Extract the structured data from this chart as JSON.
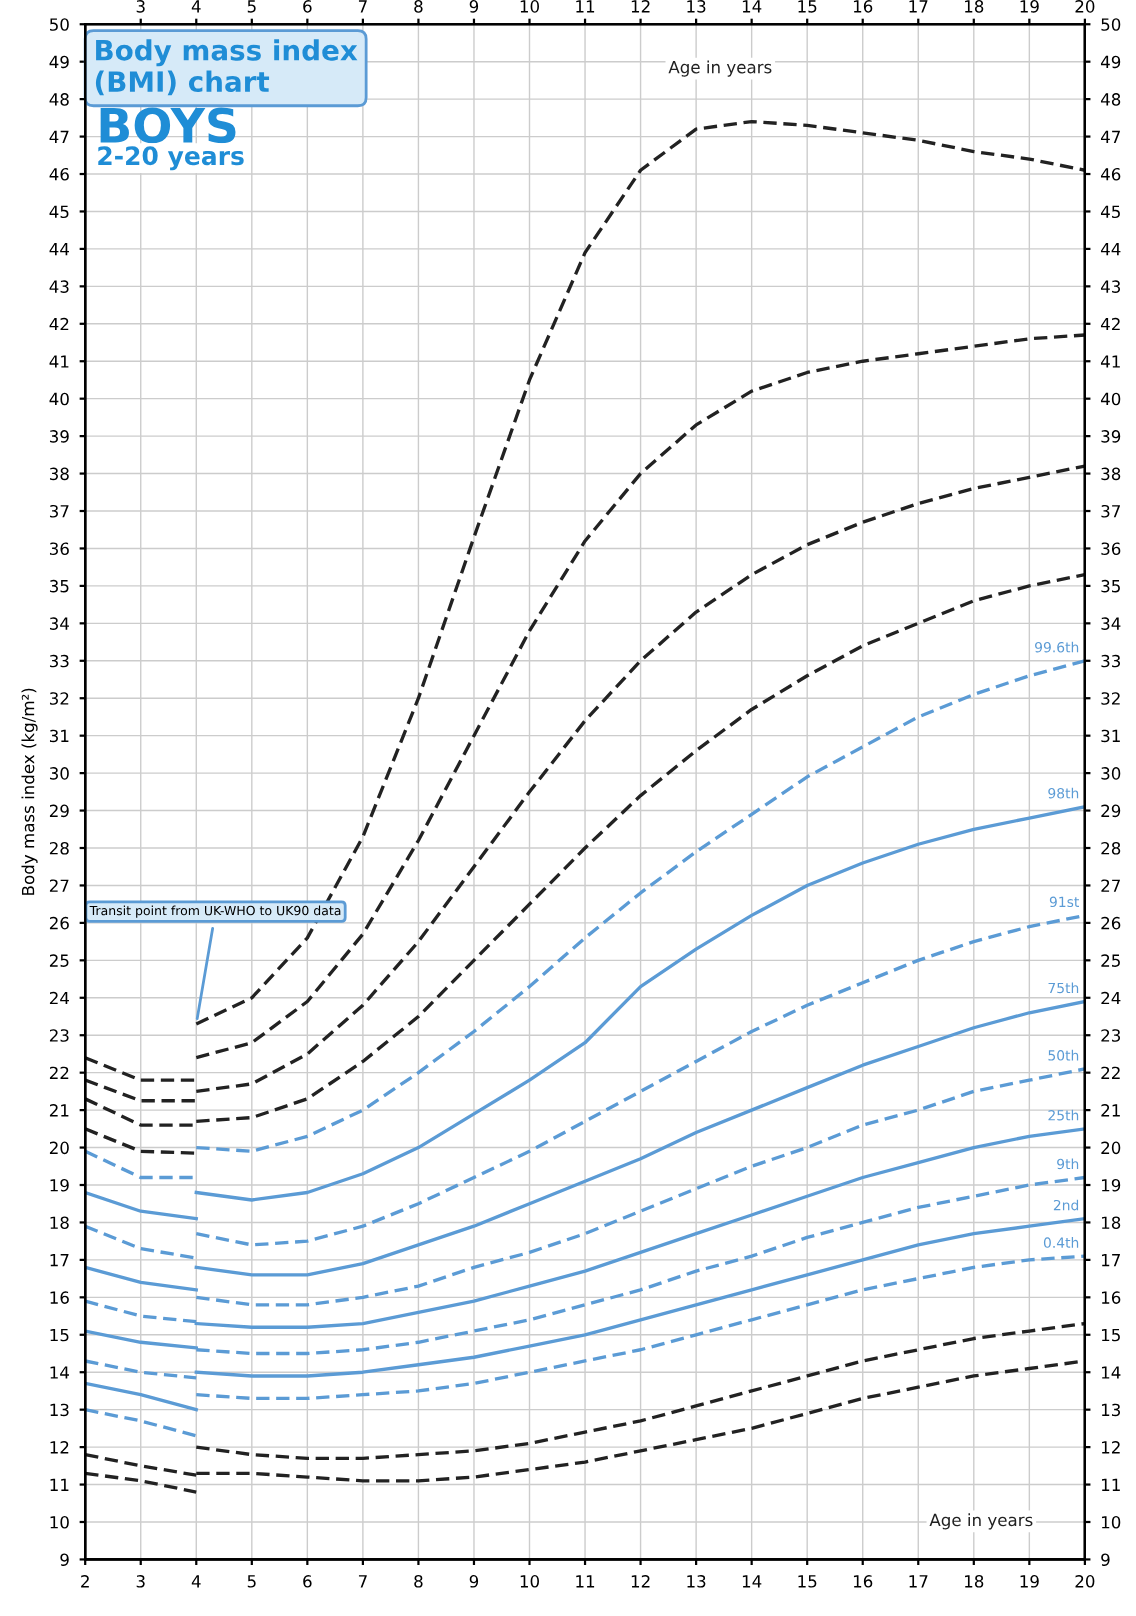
{
  "chart_data": {
    "type": "line",
    "title": "Body mass index (BMI) chart",
    "subtitle": "BOYS",
    "ylabel": "Body mass index (kg/m²)",
    "annotations": [
      "2-20 years",
      "Age in years",
      "Age in years",
      {
        "text": "Transit point from UK-WHO to UK90 data",
        "x": 4,
        "y": 23.3
      }
    ],
    "x": [
      2,
      3,
      4,
      4,
      5,
      6,
      7,
      8,
      9,
      10,
      11,
      12,
      13,
      14,
      15,
      16,
      17,
      18,
      19,
      20
    ],
    "series": [
      {
        "color": "#222222",
        "line_style": "dashed",
        "values": [
          22.4,
          21.8,
          21.8,
          23.3,
          24.0,
          25.6,
          28.3,
          32.0,
          36.3,
          40.5,
          43.9,
          46.1,
          47.2,
          47.4,
          47.3,
          47.1,
          46.9,
          46.6,
          46.4,
          46.1
        ]
      },
      {
        "color": "#222222",
        "line_style": "dashed",
        "values": [
          21.8,
          21.25,
          21.25,
          22.4,
          22.8,
          23.9,
          25.7,
          28.2,
          31.0,
          33.8,
          36.2,
          38.0,
          39.3,
          40.2,
          40.7,
          41.0,
          41.2,
          41.4,
          41.6,
          41.7
        ]
      },
      {
        "color": "#222222",
        "line_style": "dashed",
        "values": [
          21.3,
          20.6,
          20.6,
          21.5,
          21.7,
          22.5,
          23.8,
          25.5,
          27.5,
          29.5,
          31.4,
          33.0,
          34.3,
          35.3,
          36.1,
          36.7,
          37.2,
          37.6,
          37.9,
          38.2
        ]
      },
      {
        "color": "#222222",
        "line_style": "dashed",
        "values": [
          20.5,
          19.9,
          19.85,
          20.7,
          20.8,
          21.3,
          22.3,
          23.5,
          25.0,
          26.5,
          28.0,
          29.4,
          30.6,
          31.7,
          32.6,
          33.4,
          34.0,
          34.6,
          35.0,
          35.3
        ]
      },
      {
        "name": "99.6th",
        "color": "#5b9bd5",
        "line_style": "dashed",
        "values": [
          19.9,
          19.2,
          19.2,
          20.0,
          19.9,
          20.3,
          21.0,
          22.0,
          23.1,
          24.3,
          25.6,
          26.8,
          27.9,
          28.9,
          29.9,
          30.7,
          31.5,
          32.1,
          32.6,
          33.0
        ]
      },
      {
        "name": "98th",
        "color": "#5b9bd5",
        "line_style": "solid",
        "values": [
          18.8,
          18.3,
          18.1,
          18.8,
          18.6,
          18.8,
          19.3,
          20.0,
          20.9,
          21.8,
          22.8,
          24.3,
          25.3,
          26.2,
          27.0,
          27.6,
          28.1,
          28.5,
          28.8,
          29.1
        ]
      },
      {
        "name": "91st",
        "color": "#5b9bd5",
        "line_style": "dashed",
        "values": [
          17.9,
          17.3,
          17.05,
          17.7,
          17.4,
          17.5,
          17.9,
          18.5,
          19.2,
          19.9,
          20.7,
          21.5,
          22.3,
          23.1,
          23.8,
          24.4,
          25.0,
          25.5,
          25.9,
          26.2
        ]
      },
      {
        "name": "75th",
        "color": "#5b9bd5",
        "line_style": "solid",
        "values": [
          16.8,
          16.4,
          16.2,
          16.8,
          16.6,
          16.6,
          16.9,
          17.4,
          17.9,
          18.5,
          19.1,
          19.7,
          20.4,
          21.0,
          21.6,
          22.2,
          22.7,
          23.2,
          23.6,
          23.9
        ]
      },
      {
        "name": "50th",
        "color": "#5b9bd5",
        "line_style": "dashed",
        "values": [
          15.9,
          15.5,
          15.35,
          16.0,
          15.8,
          15.8,
          16.0,
          16.3,
          16.8,
          17.2,
          17.7,
          18.3,
          18.9,
          19.5,
          20.0,
          20.6,
          21.0,
          21.5,
          21.8,
          22.1
        ]
      },
      {
        "name": "25th",
        "color": "#5b9bd5",
        "line_style": "solid",
        "values": [
          15.1,
          14.8,
          14.65,
          15.3,
          15.2,
          15.2,
          15.3,
          15.6,
          15.9,
          16.3,
          16.7,
          17.2,
          17.7,
          18.2,
          18.7,
          19.2,
          19.6,
          20.0,
          20.3,
          20.5
        ]
      },
      {
        "name": "9th",
        "color": "#5b9bd5",
        "line_style": "dashed",
        "values": [
          14.3,
          14.0,
          13.85,
          14.6,
          14.5,
          14.5,
          14.6,
          14.8,
          15.1,
          15.4,
          15.8,
          16.2,
          16.7,
          17.1,
          17.6,
          18.0,
          18.4,
          18.7,
          19.0,
          19.2
        ]
      },
      {
        "name": "2nd",
        "color": "#5b9bd5",
        "line_style": "solid",
        "values": [
          13.7,
          13.4,
          13.0,
          14.0,
          13.9,
          13.9,
          14.0,
          14.2,
          14.4,
          14.7,
          15.0,
          15.4,
          15.8,
          16.2,
          16.6,
          17.0,
          17.4,
          17.7,
          17.9,
          18.1
        ]
      },
      {
        "name": "0.4th",
        "color": "#5b9bd5",
        "line_style": "dashed",
        "values": [
          13.0,
          12.7,
          12.3,
          13.4,
          13.3,
          13.3,
          13.4,
          13.5,
          13.7,
          14.0,
          14.3,
          14.6,
          15.0,
          15.4,
          15.8,
          16.2,
          16.5,
          16.8,
          17.0,
          17.1
        ]
      },
      {
        "color": "#222222",
        "line_style": "dashed",
        "values": [
          11.8,
          11.5,
          11.25,
          12.0,
          11.8,
          11.7,
          11.7,
          11.8,
          11.9,
          12.1,
          12.4,
          12.7,
          13.1,
          13.5,
          13.9,
          14.3,
          14.6,
          14.9,
          15.1,
          15.3
        ]
      },
      {
        "color": "#222222",
        "line_style": "dashed",
        "values": [
          11.3,
          11.1,
          10.8,
          11.3,
          11.3,
          11.2,
          11.1,
          11.1,
          11.2,
          11.4,
          11.6,
          11.9,
          12.2,
          12.5,
          12.9,
          13.3,
          13.6,
          13.9,
          14.1,
          14.3
        ]
      }
    ],
    "xlim": [
      2,
      20
    ],
    "xticks": [
      2,
      3,
      4,
      5,
      6,
      7,
      8,
      9,
      10,
      11,
      12,
      13,
      14,
      15,
      16,
      17,
      18,
      19,
      20
    ],
    "x2lim": [
      2,
      20
    ],
    "x2ticks": [
      3,
      4,
      5,
      6,
      7,
      8,
      9,
      10,
      11,
      12,
      13,
      14,
      15,
      16,
      17,
      18,
      19,
      20
    ],
    "ylim": [
      9,
      50
    ],
    "yticks": [
      9,
      10,
      11,
      12,
      13,
      14,
      15,
      16,
      17,
      18,
      19,
      20,
      21,
      22,
      23,
      24,
      25,
      26,
      27,
      28,
      29,
      30,
      31,
      32,
      33,
      34,
      35,
      36,
      37,
      38,
      39,
      40,
      41,
      42,
      43,
      44,
      45,
      46,
      47,
      48,
      49,
      50
    ],
    "y2lim": [
      9,
      50
    ],
    "y2ticks": [
      9,
      10,
      11,
      12,
      13,
      14,
      15,
      16,
      17,
      18,
      19,
      20,
      21,
      22,
      23,
      24,
      25,
      26,
      27,
      28,
      29,
      30,
      31,
      32,
      33,
      34,
      35,
      36,
      37,
      38,
      39,
      40,
      41,
      42,
      43,
      44,
      45,
      46,
      47,
      48,
      49,
      50
    ],
    "grid": true,
    "legend": false,
    "marker": "none"
  }
}
